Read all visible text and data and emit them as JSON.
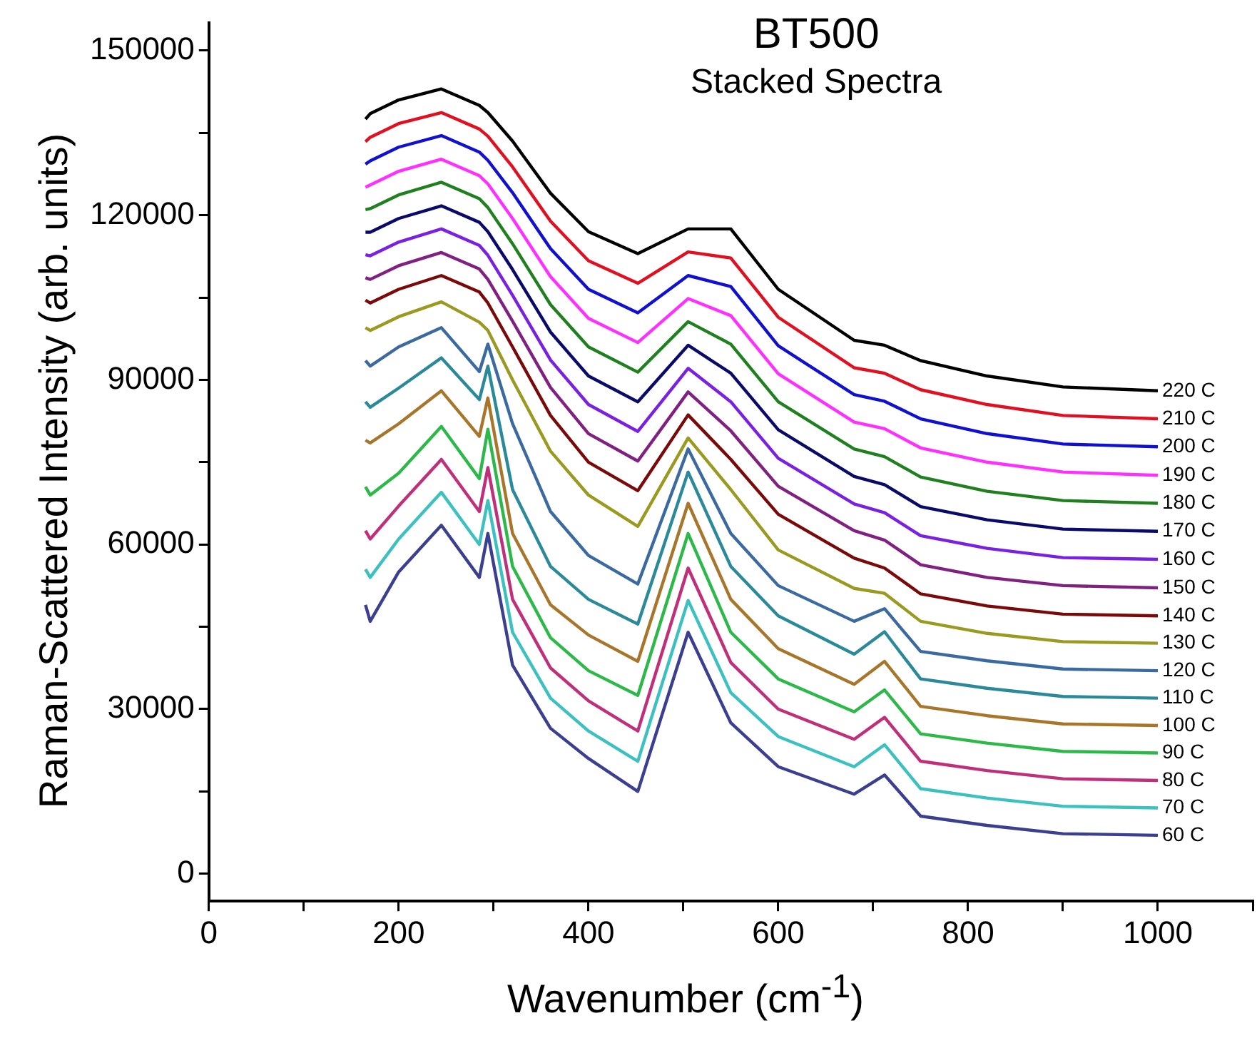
{
  "chart_data": {
    "type": "line",
    "title": "BT500",
    "subtitle": "Stacked Spectra",
    "xlabel": "Wavenumber (cm$^{-1}$)",
    "ylabel": "Raman-Scattered Intensity (arb. units)",
    "x": [
      165,
      170,
      200,
      245,
      285,
      294,
      320,
      360,
      400,
      452,
      505,
      550,
      600,
      680,
      712,
      750,
      820,
      900,
      1000
    ],
    "xlim": [
      0,
      1100
    ],
    "xticks": [
      0,
      {
        "value": 100,
        "label": null
      },
      200,
      {
        "value": 300,
        "label": null
      },
      400,
      {
        "value": 500,
        "label": null
      },
      600,
      {
        "value": 700,
        "label": null
      },
      800,
      {
        "value": 900,
        "label": null
      },
      1000,
      {
        "value": 1100,
        "label": null
      }
    ],
    "ylim": [
      -5000,
      155000
    ],
    "yticks": [
      0,
      {
        "value": 15000,
        "label": null
      },
      30000,
      {
        "value": 45000,
        "label": null
      },
      60000,
      {
        "value": 75000,
        "label": null
      },
      90000,
      {
        "value": 105000,
        "label": null
      },
      120000,
      {
        "value": 135000,
        "label": null
      },
      150000
    ],
    "grid": false,
    "legend": false,
    "marker": "none",
    "line_style": "solid",
    "series": [
      {
        "name": "60 C",
        "color": "#3b3f8f",
        "values": [
          49000,
          46000,
          55000,
          63500,
          54000,
          62000,
          38000,
          26500,
          21000,
          15000,
          44000,
          27500,
          19500,
          14500,
          18000,
          10500,
          8800,
          7300,
          7000
        ]
      },
      {
        "name": "70 C",
        "color": "#3cc0c0",
        "values": [
          55500,
          54000,
          61000,
          69500,
          60000,
          68000,
          44000,
          32000,
          26000,
          20500,
          49800,
          33000,
          25000,
          19500,
          23500,
          15500,
          13800,
          12300,
          12000
        ]
      },
      {
        "name": "80 C",
        "color": "#c0307a",
        "values": [
          62500,
          61000,
          67000,
          75500,
          66000,
          74000,
          50000,
          37500,
          31500,
          26000,
          55700,
          38500,
          30000,
          24500,
          28500,
          20500,
          18800,
          17300,
          17000
        ]
      },
      {
        "name": "90 C",
        "color": "#2db84a",
        "values": [
          70500,
          69000,
          73000,
          81500,
          72000,
          81000,
          56000,
          43000,
          37000,
          32500,
          62000,
          44000,
          35500,
          29500,
          33500,
          25500,
          23800,
          22300,
          22000
        ]
      },
      {
        "name": "100 C",
        "color": "#a8762a",
        "values": [
          79000,
          78500,
          82000,
          88000,
          79700,
          86700,
          62000,
          49000,
          43500,
          38700,
          67500,
          50000,
          41000,
          34500,
          38700,
          30500,
          28800,
          27300,
          27000
        ]
      },
      {
        "name": "110 C",
        "color": "#2a8a9a",
        "values": [
          86000,
          85000,
          88500,
          94000,
          86400,
          92500,
          70000,
          56000,
          50000,
          45500,
          73200,
          56000,
          47000,
          40000,
          44100,
          35500,
          33800,
          32300,
          32000
        ]
      },
      {
        "name": "120 C",
        "color": "#3a6aa0",
        "values": [
          93500,
          92500,
          96000,
          99500,
          91500,
          96500,
          82000,
          66000,
          58000,
          52800,
          77400,
          62000,
          52500,
          46000,
          48300,
          40500,
          38800,
          37300,
          37000
        ]
      },
      {
        "name": "130 C",
        "color": "#9a9a20",
        "values": [
          99500,
          99000,
          101500,
          104200,
          100500,
          99000,
          90000,
          77000,
          69000,
          63300,
          79400,
          70000,
          59000,
          52000,
          51100,
          46000,
          43800,
          42300,
          42000
        ]
      },
      {
        "name": "140 C",
        "color": "#7a0a0a",
        "values": [
          104500,
          104000,
          106500,
          109000,
          106000,
          104000,
          96000,
          83500,
          75000,
          69800,
          83600,
          75500,
          65500,
          57500,
          55700,
          51000,
          48800,
          47300,
          47000
        ]
      },
      {
        "name": "150 C",
        "color": "#802080",
        "values": [
          108600,
          108300,
          110800,
          113200,
          110200,
          108300,
          100700,
          88600,
          80200,
          75200,
          87800,
          80700,
          70600,
          62500,
          60800,
          56300,
          54000,
          52500,
          52100
        ]
      },
      {
        "name": "160 C",
        "color": "#7a20e0",
        "values": [
          112800,
          112600,
          115100,
          117500,
          114500,
          112700,
          105400,
          93600,
          85500,
          80600,
          92100,
          86000,
          75700,
          67400,
          65800,
          61600,
          59300,
          57600,
          57300
        ]
      },
      {
        "name": "170 C",
        "color": "#0a0a6a",
        "values": [
          116900,
          116900,
          119400,
          121700,
          118700,
          117000,
          110100,
          98700,
          90700,
          86000,
          96300,
          91200,
          80900,
          72400,
          70900,
          66900,
          64500,
          62800,
          62400
        ]
      },
      {
        "name": "180 C",
        "color": "#208020",
        "values": [
          121000,
          121200,
          123700,
          126000,
          123000,
          121400,
          114800,
          103700,
          96000,
          91400,
          100600,
          96500,
          86000,
          77400,
          76000,
          72300,
          69700,
          68000,
          67500
        ]
      },
      {
        "name": "190 C",
        "color": "#ff30ff",
        "values": [
          125100,
          125500,
          128000,
          130200,
          127200,
          125700,
          119400,
          108800,
          101200,
          96800,
          104800,
          101700,
          91100,
          82300,
          81100,
          77600,
          75000,
          73200,
          72600
        ]
      },
      {
        "name": "200 C",
        "color": "#1010d0",
        "values": [
          129300,
          129900,
          132400,
          134500,
          131500,
          130000,
          124100,
          113900,
          106500,
          102200,
          109000,
          107000,
          96200,
          87300,
          86100,
          82900,
          80200,
          78300,
          77800
        ]
      },
      {
        "name": "210 C",
        "color": "#e01020",
        "values": [
          133400,
          134200,
          136700,
          138700,
          135700,
          134400,
          128800,
          118900,
          111700,
          107600,
          113300,
          112200,
          101400,
          92200,
          91200,
          88200,
          85500,
          83500,
          82900
        ]
      },
      {
        "name": "220 C",
        "color": "#000000",
        "values": [
          137500,
          138500,
          141000,
          143000,
          140000,
          138700,
          133500,
          124000,
          117000,
          113000,
          117500,
          117500,
          106500,
          97200,
          96300,
          93500,
          90700,
          88700,
          88000
        ]
      }
    ]
  }
}
